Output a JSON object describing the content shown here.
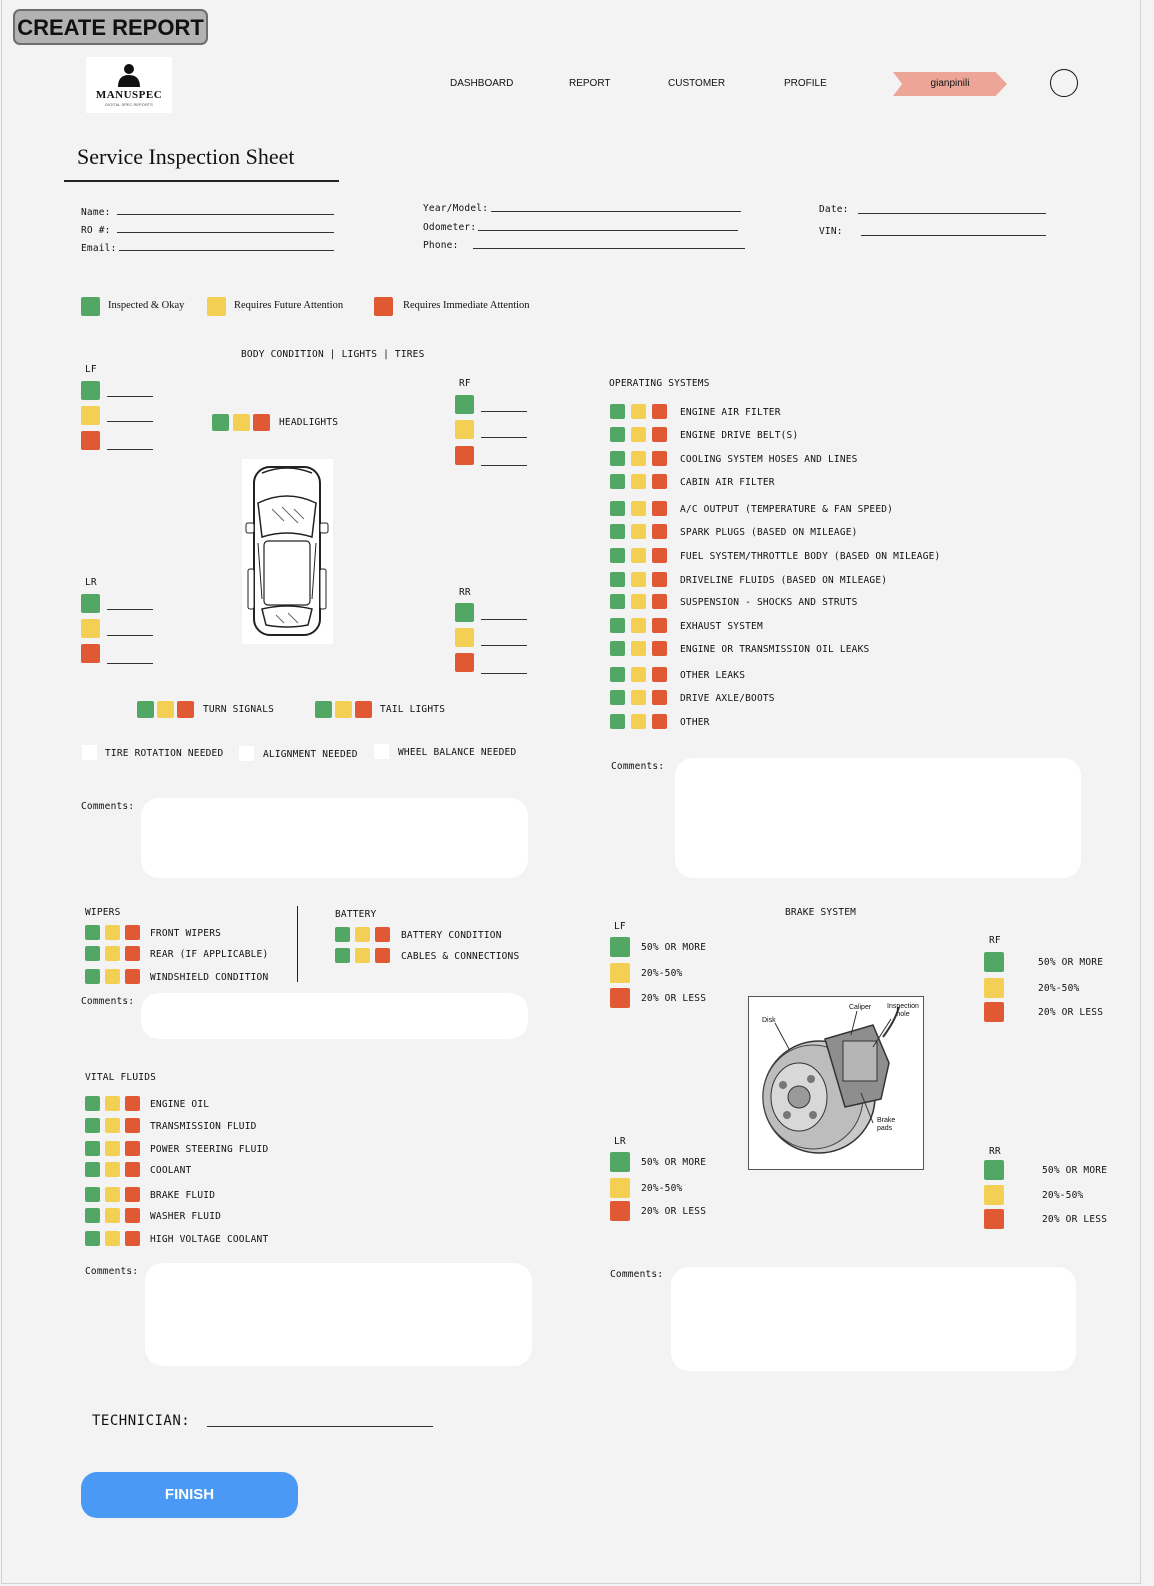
{
  "app": {
    "create_report_label": "CREATE REPORT",
    "logo_text": "MANUSPEC",
    "logo_tagline": "DIGITAL SPEC REPORTS"
  },
  "nav": {
    "dashboard": "DASHBOARD",
    "report": "REPORT",
    "customer": "CUSTOMER",
    "profile": "PROFILE",
    "user": "gianpinili"
  },
  "sheet": {
    "title": "Service Inspection Sheet"
  },
  "fields": {
    "name": "Name:",
    "ro": "RO #:",
    "email": "Email:",
    "year_model": "Year/Model:",
    "odometer": "Odometer:",
    "phone": "Phone:",
    "date": "Date:",
    "vin": "VIN:"
  },
  "legend": {
    "ok": "Inspected & Okay",
    "future": "Requires Future Attention",
    "immediate": "Requires Immediate Attention"
  },
  "colors": {
    "green": "#52a765",
    "yellow": "#f3cf54",
    "red": "#e15834",
    "accent": "#4a9af5",
    "user_badge": "#eca597"
  },
  "body": {
    "heading": "BODY CONDITION | LIGHTS | TIRES",
    "lf": "LF",
    "rf": "RF",
    "lr": "LR",
    "rr": "RR",
    "headlights": "HEADLIGHTS",
    "turn_signals": "TURN SIGNALS",
    "tail_lights": "TAIL LIGHTS",
    "tire_rotation": "TIRE ROTATION NEEDED",
    "alignment": "ALIGNMENT NEEDED",
    "wheel_balance": "WHEEL BALANCE NEEDED",
    "comments": "Comments:"
  },
  "operating": {
    "heading": "OPERATING SYSTEMS",
    "items": [
      "ENGINE AIR FILTER",
      "ENGINE DRIVE BELT(S)",
      "COOLING SYSTEM HOSES AND LINES",
      "CABIN AIR FILTER",
      "A/C OUTPUT (TEMPERATURE & FAN SPEED)",
      "SPARK PLUGS (BASED ON MILEAGE)",
      "FUEL SYSTEM/THROTTLE BODY (BASED ON MILEAGE)",
      "DRIVELINE FLUIDS (BASED ON MILEAGE)",
      "SUSPENSION - SHOCKS AND STRUTS",
      "EXHAUST SYSTEM",
      "ENGINE OR TRANSMISSION OIL LEAKS",
      "OTHER LEAKS",
      "DRIVE AXLE/BOOTS",
      "OTHER"
    ],
    "comments": "Comments:"
  },
  "wipers": {
    "heading": "WIPERS",
    "items": [
      "FRONT WIPERS",
      "REAR (IF APPLICABLE)",
      "WINDSHIELD CONDITION"
    ],
    "comments": "Comments:"
  },
  "battery": {
    "heading": "BATTERY",
    "items": [
      "BATTERY CONDITION",
      "CABLES & CONNECTIONS"
    ]
  },
  "brakes": {
    "heading": "BRAKE SYSTEM",
    "lf": "LF",
    "rf": "RF",
    "lr": "LR",
    "rr": "RR",
    "levels": [
      "50% OR MORE",
      "20%-50%",
      "20% OR LESS"
    ],
    "diagram_labels": {
      "disk": "Disk",
      "caliper": "Caliper",
      "inspection_hole": "Inspection hole",
      "brake_pads": "Brake pads"
    },
    "comments": "Comments:"
  },
  "fluids": {
    "heading": "VITAL FLUIDS",
    "items": [
      "ENGINE OIL",
      "TRANSMISSION FLUID",
      "POWER STEERING FLUID",
      "COOLANT",
      "BRAKE FLUID",
      "WASHER FLUID",
      "HIGH VOLTAGE COOLANT"
    ],
    "comments": "Comments:"
  },
  "footer": {
    "technician": "TECHNICIAN:",
    "finish": "FINISH"
  }
}
